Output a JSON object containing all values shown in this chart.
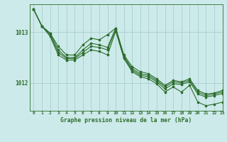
{
  "title": "Graphe pression niveau de la mer (hPa)",
  "bg_color": "#cdeaea",
  "line_color": "#2d6e2d",
  "grid_color": "#a8cece",
  "xlim": [
    -0.5,
    23
  ],
  "ylim": [
    1011.45,
    1013.55
  ],
  "yticks": [
    1012,
    1013
  ],
  "xticks": [
    0,
    1,
    2,
    3,
    4,
    5,
    6,
    7,
    8,
    9,
    10,
    11,
    12,
    13,
    14,
    15,
    16,
    17,
    18,
    19,
    20,
    21,
    22,
    23
  ],
  "series": [
    [
      1013.45,
      1013.12,
      1012.98,
      1012.72,
      1012.55,
      1012.55,
      1012.75,
      1012.88,
      1012.85,
      1012.95,
      1013.08,
      1012.55,
      1012.32,
      1012.22,
      1012.18,
      1012.08,
      1011.95,
      1012.05,
      1012.02,
      1012.08,
      1011.85,
      1011.78,
      1011.8,
      1011.85
    ],
    [
      1013.45,
      1013.12,
      1012.98,
      1012.65,
      1012.5,
      1012.5,
      1012.65,
      1012.78,
      1012.75,
      1012.7,
      1013.08,
      1012.52,
      1012.28,
      1012.18,
      1012.15,
      1012.05,
      1011.92,
      1012.02,
      1012.0,
      1012.05,
      1011.82,
      1011.75,
      1011.78,
      1011.82
    ],
    [
      1013.45,
      1013.12,
      1012.95,
      1012.6,
      1012.48,
      1012.48,
      1012.6,
      1012.72,
      1012.7,
      1012.65,
      1013.05,
      1012.5,
      1012.25,
      1012.15,
      1012.12,
      1012.02,
      1011.88,
      1011.98,
      1011.97,
      1012.02,
      1011.78,
      1011.72,
      1011.75,
      1011.79
    ],
    [
      1013.45,
      1013.12,
      1012.92,
      1012.55,
      1012.45,
      1012.45,
      1012.55,
      1012.65,
      1012.62,
      1012.55,
      1013.02,
      1012.48,
      1012.22,
      1012.12,
      1012.08,
      1011.98,
      1011.82,
      1011.92,
      1011.82,
      1011.95,
      1011.62,
      1011.55,
      1011.58,
      1011.62
    ]
  ]
}
